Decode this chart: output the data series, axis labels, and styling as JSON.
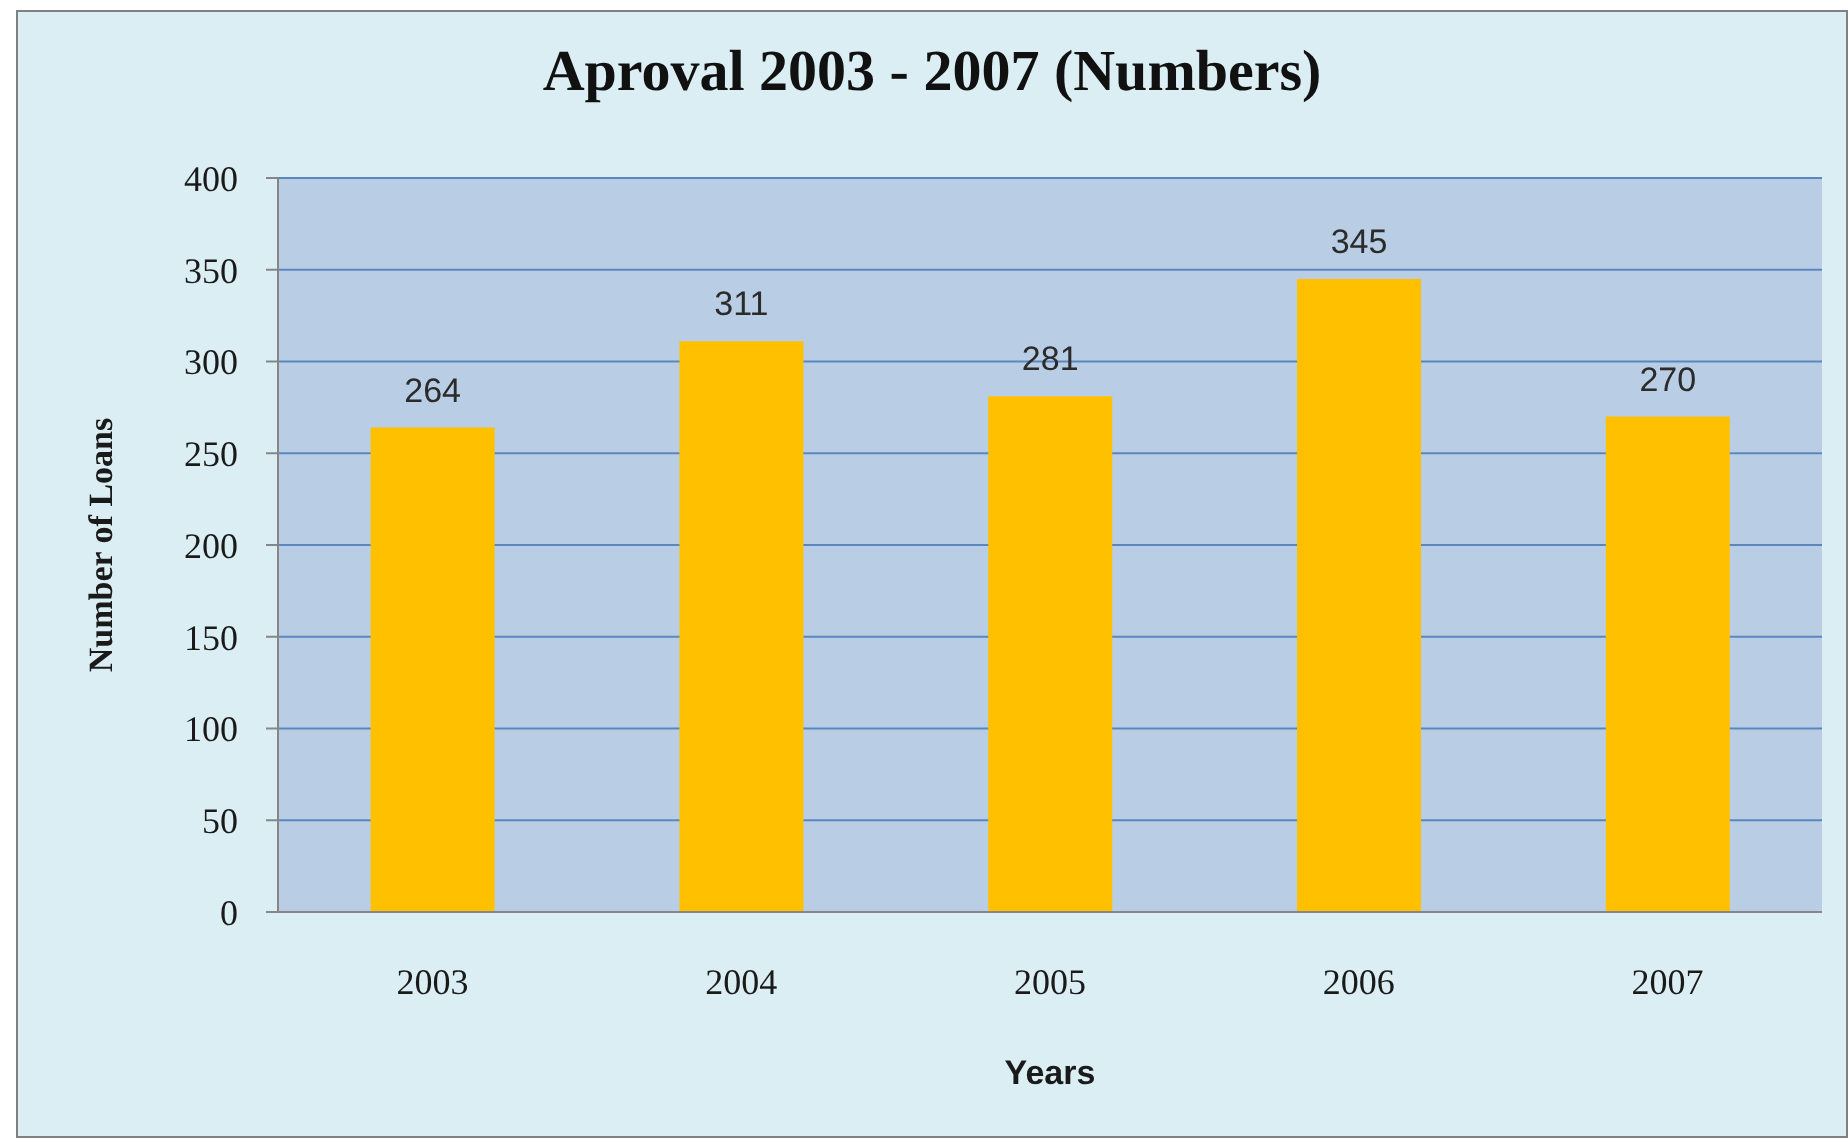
{
  "chart_data": {
    "type": "bar",
    "title": "Aproval 2003 - 2007 (Numbers)",
    "xlabel": "Years",
    "ylabel": "Number of Loans",
    "categories": [
      "2003",
      "2004",
      "2005",
      "2006",
      "2007"
    ],
    "values": [
      264,
      311,
      281,
      345,
      270
    ],
    "color": "#ffc000",
    "ylim": [
      0,
      400
    ],
    "yticks": [
      0,
      50,
      100,
      150,
      200,
      250,
      300,
      350,
      400
    ],
    "grid": "y",
    "data_labels": true
  }
}
